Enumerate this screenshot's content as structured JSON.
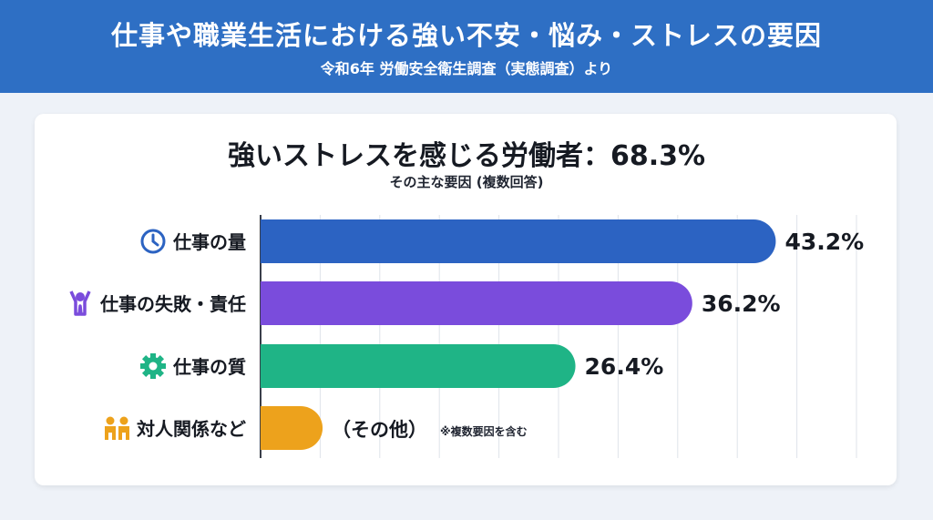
{
  "header": {
    "title": "仕事や職業生活における強い不安・悩み・ストレスの要因",
    "subtitle": "令和6年 労働安全衛生調査（実態調査）より"
  },
  "chart_title": "強いストレスを感じる労働者：68.3%",
  "chart_subtitle": "その主な要因 (複数回答)",
  "note": "※複数要因を含む",
  "chart_data": {
    "type": "bar",
    "orientation": "horizontal",
    "title": "強いストレスを感じる労働者：68.3%",
    "subtitle": "その主な要因 (複数回答)",
    "categories": [
      "仕事の量",
      "仕事の失敗・責任",
      "仕事の質",
      "対人関係など"
    ],
    "values": [
      43.2,
      36.2,
      26.4,
      5.2
    ],
    "value_labels": [
      "43.2%",
      "36.2%",
      "26.4%",
      "（その他）"
    ],
    "icons": [
      "clock-icon",
      "stress-person-icon",
      "gear-icon",
      "people-icon"
    ],
    "colors": [
      "#2c63c2",
      "#7a4cdc",
      "#1fb486",
      "#eda21c"
    ],
    "xlim": [
      0,
      45
    ],
    "grid": true
  }
}
